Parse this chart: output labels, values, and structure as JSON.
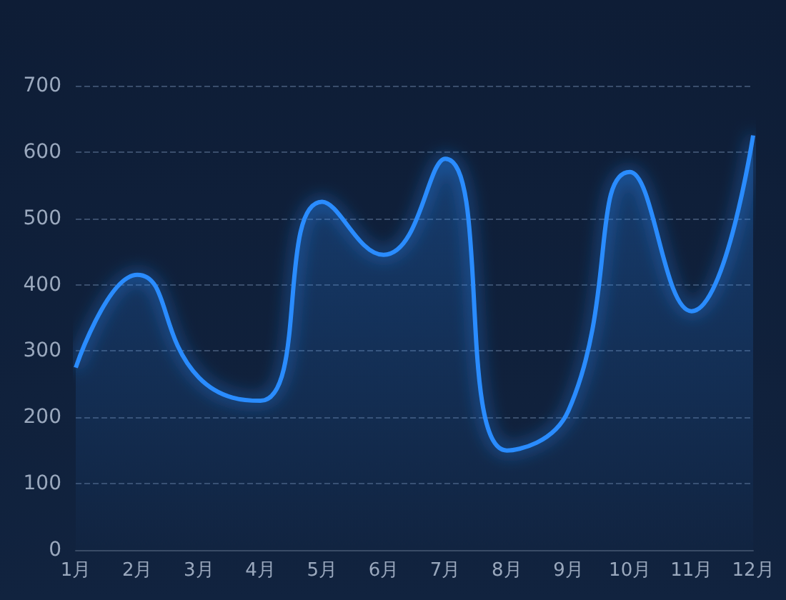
{
  "chart_data": {
    "type": "area",
    "categories": [
      "1月",
      "2月",
      "3月",
      "4月",
      "5月",
      "6月",
      "7月",
      "8月",
      "9月",
      "10月",
      "11月",
      "12月"
    ],
    "series": [
      {
        "color": "#2a8cff",
        "values": [
          275,
          415,
          260,
          225,
          525,
          445,
          590,
          150,
          210,
          570,
          360,
          625
        ]
      }
    ],
    "ylim": [
      0,
      700
    ],
    "yticks": [
      0,
      100,
      200,
      300,
      400,
      500,
      600,
      700
    ],
    "grid": "y",
    "marker": "none",
    "line_style": "solid"
  }
}
